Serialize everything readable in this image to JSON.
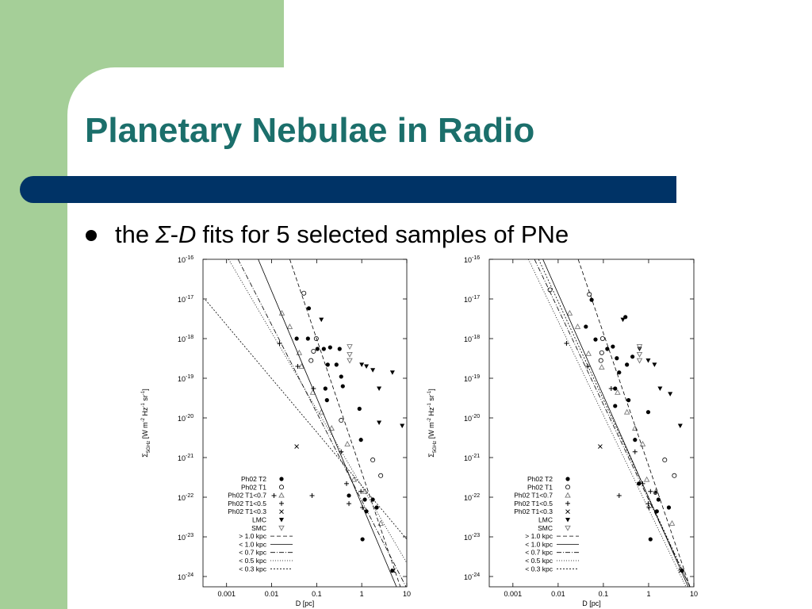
{
  "title": "Planetary Nebulae in Radio",
  "bullet": [
    "the",
    "Σ",
    "-",
    "D",
    "fits for 5 selected samples of PNe"
  ],
  "chart_data": [
    {
      "type": "scatter",
      "xscale": "log",
      "yscale": "log",
      "xlabel": "D [pc]",
      "ylabel": [
        "Σ",
        "5GHz",
        " [W m",
        "-2",
        " Hz",
        "-1",
        " sr",
        "-1",
        "]"
      ],
      "xlim": [
        0.0003,
        10
      ],
      "ylim": [
        5.5e-25,
        1e-16
      ],
      "xticks": [
        0.001,
        0.01,
        0.1,
        1,
        10
      ],
      "yticks": [
        {
          "value": 1e-16,
          "label": "10",
          "exponent": "-16"
        },
        {
          "value": 1e-17,
          "label": "10",
          "exponent": "-17"
        },
        {
          "value": 1e-18,
          "label": "10",
          "exponent": "-18"
        },
        {
          "value": 1e-19,
          "label": "10",
          "exponent": "-19"
        },
        {
          "value": 1e-20,
          "label": "10",
          "exponent": "-20"
        },
        {
          "value": 1e-21,
          "label": "10",
          "exponent": "-21"
        },
        {
          "value": 1e-22,
          "label": "10",
          "exponent": "-22"
        },
        {
          "value": 1e-23,
          "label": "10",
          "exponent": "-23"
        },
        {
          "value": 1e-24,
          "label": "10",
          "exponent": "-24"
        }
      ],
      "legend": "lower left",
      "series": [
        {
          "name": "Ph02 T2",
          "marker": "filled-circle",
          "color": "#000000",
          "x": [
            0.067,
            0.036,
            0.064,
            0.104,
            0.144,
            0.199,
            0.176,
            0.323,
            0.275,
            0.35,
            0.156,
            0.38,
            0.169,
            0.89,
            0.96,
            0.52,
            1.17,
            1.76,
            4.8,
            1.04,
            1.27,
            2.15
          ],
          "values": [
            5.8e-18,
            1e-18,
            1e-18,
            5.5e-19,
            5.5e-19,
            6e-19,
            2.2e-19,
            5.5e-19,
            2.2e-19,
            1.1e-19,
            5.5e-20,
            6.3e-20,
            2.8e-20,
            1.7e-20,
            2.8e-21,
            1.1e-22,
            8.7e-23,
            8.7e-23,
            1.4e-24,
            8.7e-24,
            4.4e-23,
            5.5e-23
          ]
        },
        {
          "name": "Ph02 T1",
          "marker": "open-circle",
          "color": "#000000",
          "x": [
            0.052,
            0.098,
            0.085,
            0.075,
            0.35,
            1.76,
            2.64
          ],
          "values": [
            1.4e-17,
            1e-18,
            4.8e-19,
            2.8e-19,
            8.7e-21,
            8.7e-22,
            3.5e-22
          ]
        },
        {
          "name": "Ph02 T1<0.7",
          "marker": "open-triangle",
          "color": "#777777",
          "x": [
            0.0169,
            0.0253,
            0.041,
            0.046,
            0.082,
            0.127,
            0.215,
            0.48,
            0.67,
            1.17,
            2.64
          ],
          "values": [
            4.4e-18,
            2e-18,
            4.4e-19,
            2e-19,
            4.4e-20,
            1.4e-20,
            5.5e-21,
            2.2e-21,
            2.8e-22,
            1.4e-22,
            2.2e-23
          ]
        },
        {
          "name": "Ph02 T1<0.5",
          "marker": "plus",
          "color": "#000000",
          "x": [
            0.015,
            0.038,
            0.085,
            0.35,
            0.46,
            0.079,
            0.96,
            0.0113,
            1.04,
            0.52
          ],
          "values": [
            7.6e-19,
            2e-19,
            5.5e-20,
            1.4e-21,
            2.2e-22,
            1.1e-22,
            1.4e-22,
            1.1e-22,
            5.5e-23,
            6.9e-23
          ]
        },
        {
          "name": "Ph02 T1<0.3",
          "marker": "cross",
          "color": "#000000",
          "x": [
            0.036,
            5.0
          ],
          "values": [
            1.9e-21,
            1.4e-24
          ]
        },
        {
          "name": "LMC",
          "marker": "filled-down-triangle",
          "color": "#000000",
          "x": [
            1.0,
            1.27,
            1.76,
            2.43,
            2.43,
            7.9,
            4.8,
            0.127
          ],
          "values": [
            2.2e-19,
            2e-19,
            1.6e-19,
            5.5e-20,
            7.6e-21,
            6.3e-21,
            1.4e-19,
            3e-18
          ]
        },
        {
          "name": "SMC",
          "marker": "open-down-triangle",
          "color": "#777777",
          "x": [
            0.54,
            0.54,
            0.54
          ],
          "values": [
            6.3e-19,
            4e-19,
            2.8e-19
          ]
        },
        {
          "name": "> 1.0 kpc",
          "line": "dashed",
          "color": "#000000",
          "x": [
            0.0253,
            7.2
          ],
          "values": [
            1e-16,
            5.5e-25
          ]
        },
        {
          "name": "< 1.0 kpc",
          "line": "solid",
          "color": "#000000",
          "x": [
            0.00504,
            5.9
          ],
          "values": [
            1e-16,
            5.5e-25
          ]
        },
        {
          "name": "< 0.7 kpc",
          "line": "dashdot",
          "color": "#000000",
          "x": [
            0.0018,
            9.6
          ],
          "values": [
            1e-16,
            5.5e-25
          ]
        },
        {
          "name": "< 0.5 kpc",
          "line": "dotted",
          "color": "#000000",
          "x": [
            0.00082,
            10
          ],
          "values": [
            1.8e-16,
            2.2e-24
          ]
        },
        {
          "name": "< 0.3 kpc",
          "line": "shortdash",
          "color": "#000000",
          "x": [
            0.00034,
            10
          ],
          "values": [
            9.5e-18,
            8.7e-24
          ]
        }
      ]
    },
    {
      "type": "scatter",
      "xscale": "log",
      "yscale": "log",
      "xlabel": "D [pc]",
      "ylabel": [
        "Σ",
        "5GHz",
        " [W m",
        "-2",
        " Hz",
        "-1",
        " sr",
        "-1",
        "]"
      ],
      "xlim": [
        0.0003,
        10
      ],
      "ylim": [
        5.5e-25,
        1e-16
      ],
      "xticks": [
        0.001,
        0.01,
        0.1,
        1,
        10
      ],
      "yticks": [
        {
          "value": 1e-16,
          "label": "10",
          "exponent": "-16"
        },
        {
          "value": 1e-17,
          "label": "10",
          "exponent": "-17"
        },
        {
          "value": 1e-18,
          "label": "10",
          "exponent": "-18"
        },
        {
          "value": 1e-19,
          "label": "10",
          "exponent": "-19"
        },
        {
          "value": 1e-20,
          "label": "10",
          "exponent": "-20"
        },
        {
          "value": 1e-21,
          "label": "10",
          "exponent": "-21"
        },
        {
          "value": 1e-22,
          "label": "10",
          "exponent": "-22"
        },
        {
          "value": 1e-23,
          "label": "10",
          "exponent": "-23"
        },
        {
          "value": 1e-24,
          "label": "10",
          "exponent": "-24"
        }
      ],
      "legend": "lower left",
      "series": [
        {
          "name": "Ph02 T2",
          "marker": "filled-circle",
          "color": "#000000",
          "x": [
            0.055,
            0.041,
            0.067,
            0.122,
            0.162,
            0.307,
            0.198,
            0.332,
            0.44,
            0.223,
            0.182,
            0.182,
            0.36,
            0.98,
            0.5,
            0.61,
            1.41,
            1.65,
            5.5,
            1.1,
            1.52,
            2.8
          ],
          "values": [
            9.5e-18,
            2e-18,
            9.5e-19,
            5.5e-19,
            6.3e-19,
            3.5e-18,
            3.2e-19,
            2.2e-19,
            3.5e-19,
            1.4e-19,
            5.5e-20,
            2e-20,
            2.8e-20,
            1.4e-20,
            2.8e-21,
            2.2e-22,
            1.3e-22,
            8.7e-23,
            1.4e-24,
            8.7e-24,
            4.4e-23,
            5.5e-23
          ]
        },
        {
          "name": "Ph02 T1",
          "marker": "open-circle",
          "color": "#000000",
          "x": [
            0.0066,
            0.049,
            0.096,
            0.092,
            0.088,
            2.27,
            3.7
          ],
          "values": [
            1.7e-17,
            1.3e-17,
            1e-18,
            4.4e-19,
            2.8e-19,
            8.7e-22,
            3.5e-22
          ]
        },
        {
          "name": "Ph02 T1<0.7",
          "marker": "open-triangle",
          "color": "#777777",
          "x": [
            0.018,
            0.027,
            0.047,
            0.092,
            0.206,
            0.332,
            0.5,
            0.74,
            0.91,
            1.45,
            3.3
          ],
          "values": [
            4.4e-18,
            2e-18,
            4.2e-19,
            1.9e-19,
            4.4e-20,
            1.4e-20,
            5.5e-21,
            2.2e-21,
            2.8e-22,
            1.4e-22,
            2.2e-23
          ]
        },
        {
          "name": "Ph02 T1<0.5",
          "marker": "plus",
          "color": "#000000",
          "x": [
            0.0153,
            0.045,
            0.149,
            0.5,
            0.74,
            0.223,
            1.1,
            1.02,
            0.98
          ],
          "values": [
            7.6e-19,
            2e-19,
            5.5e-20,
            1.4e-21,
            2.2e-22,
            1.1e-22,
            1.4e-22,
            5.5e-23,
            6.9e-23
          ]
        },
        {
          "name": "Ph02 T1<0.3",
          "marker": "cross",
          "color": "#000000",
          "x": [
            0.085,
            5.1
          ],
          "values": [
            1.9e-21,
            1.4e-24
          ]
        },
        {
          "name": "LMC",
          "marker": "filled-down-triangle",
          "color": "#000000",
          "x": [
            0.27,
            0.63,
            0.98,
            1.35,
            1.79,
            3.0,
            5.0
          ],
          "values": [
            3e-18,
            5.5e-19,
            2.8e-19,
            2.2e-19,
            5.5e-20,
            4e-20,
            6.3e-21
          ]
        },
        {
          "name": "SMC",
          "marker": "open-down-triangle",
          "color": "#777777",
          "x": [
            0.63,
            0.63,
            0.63
          ],
          "values": [
            6.3e-19,
            4e-19,
            2.8e-19
          ]
        },
        {
          "name": "> 1.0 kpc",
          "line": "dashed",
          "color": "#000000",
          "x": [
            0.0277,
            8.2
          ],
          "values": [
            1e-16,
            5.5e-25
          ]
        },
        {
          "name": "< 1.0 kpc",
          "line": "solid",
          "color": "#000000",
          "x": [
            0.0046,
            7.5
          ],
          "values": [
            1e-16,
            5.5e-25
          ]
        },
        {
          "name": "< 0.7 kpc",
          "line": "dashdot",
          "color": "#000000",
          "x": [
            0.003,
            8.2
          ],
          "values": [
            1e-16,
            5.5e-25
          ]
        },
        {
          "name": "< 0.5 kpc",
          "line": "dotted",
          "color": "#000000",
          "x": [
            0.0022,
            6.7
          ],
          "values": [
            1e-16,
            5.5e-25
          ]
        },
        {
          "name": "< 0.3 kpc",
          "line": "shortdash",
          "color": "#000000",
          "x": [
            0.0037,
            8.2
          ],
          "values": [
            1e-16,
            5.5e-25
          ]
        }
      ]
    }
  ]
}
